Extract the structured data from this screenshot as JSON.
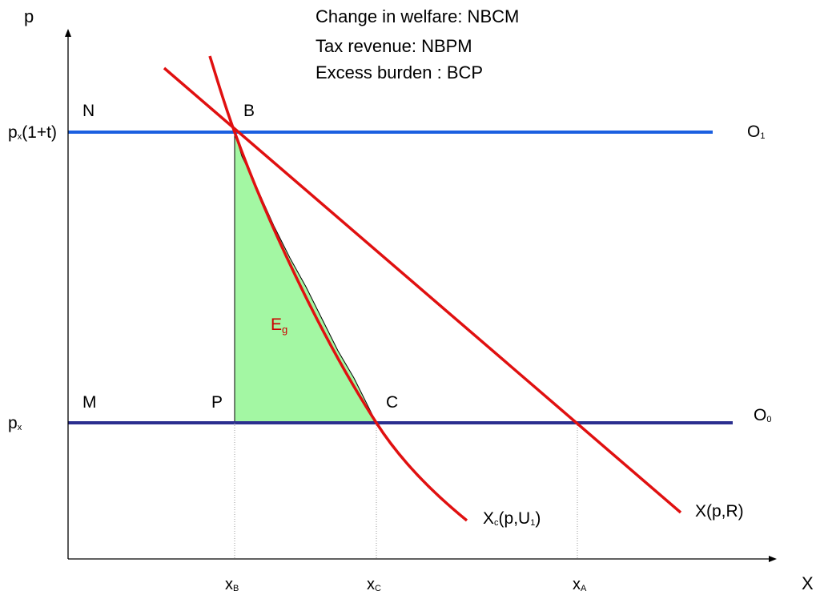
{
  "axes": {
    "y_label": "p",
    "x_label": "X"
  },
  "legend": {
    "change_in_welfare": "Change in welfare: NBCM",
    "tax_revenue": "Tax revenue: NBPM",
    "excess_burden": "Excess burden : BCP"
  },
  "y_ticks": {
    "taxed_price": {
      "base": "p",
      "sub": "x",
      "rest": "(1+t)"
    },
    "price": {
      "base": "p",
      "sub": "x"
    }
  },
  "points": {
    "N": "N",
    "B": "B",
    "M": "M",
    "P": "P",
    "C": "C"
  },
  "lines": {
    "O1": {
      "base": "O",
      "sub": "1"
    },
    "O0": {
      "base": "O",
      "sub": "0"
    }
  },
  "curves": {
    "compensated_demand": {
      "base": "X",
      "sub": "c",
      "mid": "(p,U",
      "sub2": "1",
      "end": ")"
    },
    "marshallian_demand": "X(p,R)"
  },
  "region": {
    "base": "E",
    "sub": "g"
  },
  "x_ticks": {
    "xB": {
      "base": "x",
      "sub": "B"
    },
    "xC": {
      "base": "x",
      "sub": "C"
    },
    "xA": {
      "base": "x",
      "sub": "A"
    }
  },
  "colors": {
    "price_line_taxed": "#1a5fe0",
    "price_line": "#2b2f8f",
    "demand_curves": "#e01010",
    "excess_burden_fill": "#a3f7a3",
    "axis": "#000000"
  }
}
